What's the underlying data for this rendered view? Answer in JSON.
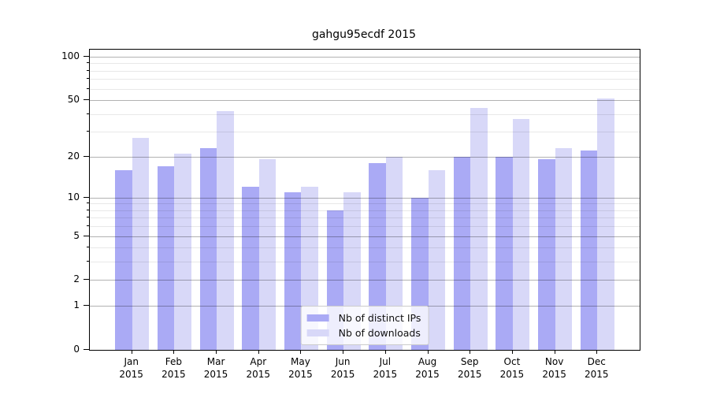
{
  "figure": {
    "title": "gahgu95ecdf 2015",
    "background": "#ffffff"
  },
  "chart_data": {
    "type": "bar",
    "title": "gahgu95ecdf 2015",
    "categories": [
      "Jan",
      "Feb",
      "Mar",
      "Apr",
      "May",
      "Jun",
      "Jul",
      "Aug",
      "Sep",
      "Oct",
      "Nov",
      "Dec"
    ],
    "category_year": "2015",
    "series": [
      {
        "name": "Nb of distinct IPs",
        "color": "#aaaaf5",
        "values": [
          16,
          17,
          23,
          12,
          11,
          8,
          18,
          10,
          20,
          20,
          19,
          22
        ]
      },
      {
        "name": "Nb of downloads",
        "color": "#d8d8f8",
        "values": [
          27,
          21,
          42,
          19,
          12,
          11,
          20,
          16,
          44,
          37,
          23,
          51
        ]
      }
    ],
    "xlabel": "",
    "ylabel": "",
    "y_scale": "log10(value+1)",
    "y_axis": {
      "tick_values": [
        0,
        1,
        2,
        5,
        10,
        20,
        50,
        100
      ],
      "tick_labels": [
        "0",
        "1",
        "2",
        "5",
        "10",
        "20",
        "50",
        "100"
      ],
      "minor_gridline_values": [
        3,
        4,
        6,
        7,
        8,
        9,
        30,
        40,
        60,
        70,
        80,
        90
      ],
      "max": 112
    },
    "legend": {
      "position": "lower center",
      "entries": [
        "Nb of distinct IPs",
        "Nb of downloads"
      ]
    },
    "grid": true,
    "style": {
      "major_grid_color": "#b0b0b0",
      "minor_grid_color": "#e8e8e8",
      "spine_color": "#000000",
      "text_color": "#000000",
      "background": "#ffffff"
    }
  }
}
